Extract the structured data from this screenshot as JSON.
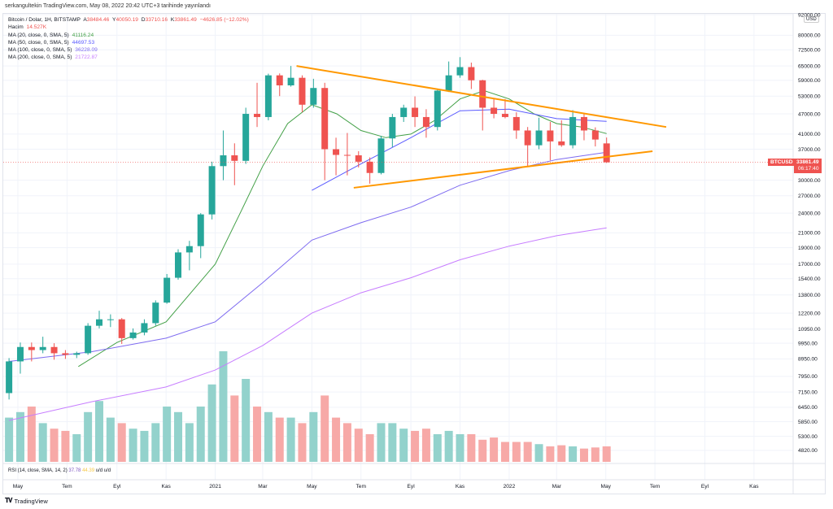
{
  "publisher_line": "serkangultekin TradingView.com, May 08, 2022 20:42 UTC+3 tarihinde yayınlandı",
  "legend": {
    "symbol": "Bitcoin / Dolar, 1H, BITSTAMP",
    "ohlc": {
      "a_label": "A",
      "a": "38484.46",
      "y_label": "Y",
      "y": "40050.19",
      "d_label": "D",
      "d": "33710.16",
      "k_label": "K",
      "k": "33861.49",
      "change": "−4626.85 (−12.02%)"
    },
    "volume_label": "Hacim",
    "volume_value": "14.527K",
    "ma": [
      {
        "label": "MA (20, close, 0, SMA, 5)",
        "value": "41116.24",
        "color": "#43a047"
      },
      {
        "label": "MA (50, close, 0, SMA, 5)",
        "value": "44697.53",
        "color": "#5a5aff"
      },
      {
        "label": "MA (100, close, 0, SMA, 5)",
        "value": "36228.09",
        "color": "#7e6bf0"
      },
      {
        "label": "MA (200, close, 0, SMA, 5)",
        "value": "21722.87",
        "color": "#c77dff"
      }
    ]
  },
  "rsi": {
    "label": "RSI (14, close, SMA, 14, 2)",
    "value1": "37.78",
    "value2": "44.39",
    "extra": "u/d u/d",
    "color1": "#7e57c2",
    "color2": "#f7c948"
  },
  "price_axis": {
    "currency": "USD",
    "ticks": [
      "92000.00",
      "80000.00",
      "72500.00",
      "65000.00",
      "59000.00",
      "53000.00",
      "47000.00",
      "41000.00",
      "37000.00",
      "30000.00",
      "27000.00",
      "24000.00",
      "21000.00",
      "19000.00",
      "17000.00",
      "15400.00",
      "13800.00",
      "12200.00",
      "10950.00",
      "9950.00",
      "8950.00",
      "7950.00",
      "7150.00",
      "6450.00",
      "5850.00",
      "5300.00",
      "4820.00"
    ]
  },
  "symbol_tag": "BTCUSD",
  "last_price": "33861.49",
  "countdown": "06:17:40",
  "footer_brand": "TradingView",
  "colors": {
    "up": "#26a69a",
    "down": "#ef5350",
    "trendline": "#ff9800",
    "grid": "#f0f3fa"
  },
  "chart_data": {
    "type": "candlestick",
    "y_scale": "log",
    "ylim": [
      4500,
      92000
    ],
    "grid": true,
    "x_ticks": [
      {
        "label": "May",
        "date": "2020-05-01"
      },
      {
        "label": "Tem",
        "date": "2020-07-01"
      },
      {
        "label": "Eyl",
        "date": "2020-09-01"
      },
      {
        "label": "Kas",
        "date": "2020-11-01"
      },
      {
        "label": "2021",
        "date": "2021-01-01"
      },
      {
        "label": "Mar",
        "date": "2021-03-01"
      },
      {
        "label": "May",
        "date": "2021-05-01"
      },
      {
        "label": "Tem",
        "date": "2021-07-01"
      },
      {
        "label": "Eyl",
        "date": "2021-09-01"
      },
      {
        "label": "Kas",
        "date": "2021-11-01"
      },
      {
        "label": "2022",
        "date": "2022-01-01"
      },
      {
        "label": "Mar",
        "date": "2022-03-01"
      },
      {
        "label": "May",
        "date": "2022-05-01"
      },
      {
        "label": "Tem",
        "date": "2022-07-01"
      },
      {
        "label": "Eyl",
        "date": "2022-09-01"
      },
      {
        "label": "Kas",
        "date": "2022-11-01"
      }
    ],
    "dates": [
      "2020-04-20",
      "2020-05-04",
      "2020-05-18",
      "2020-06-01",
      "2020-06-15",
      "2020-06-29",
      "2020-07-13",
      "2020-07-27",
      "2020-08-10",
      "2020-08-24",
      "2020-09-07",
      "2020-09-21",
      "2020-10-05",
      "2020-10-19",
      "2020-11-02",
      "2020-11-16",
      "2020-11-30",
      "2020-12-14",
      "2020-12-28",
      "2021-01-11",
      "2021-01-25",
      "2021-02-08",
      "2021-02-22",
      "2021-03-08",
      "2021-03-22",
      "2021-04-05",
      "2021-04-19",
      "2021-05-03",
      "2021-05-17",
      "2021-05-31",
      "2021-06-14",
      "2021-06-28",
      "2021-07-12",
      "2021-07-26",
      "2021-08-09",
      "2021-08-23",
      "2021-09-06",
      "2021-09-20",
      "2021-10-04",
      "2021-10-18",
      "2021-11-01",
      "2021-11-15",
      "2021-11-29",
      "2021-12-13",
      "2021-12-27",
      "2022-01-10",
      "2022-01-24",
      "2022-02-07",
      "2022-02-21",
      "2022-03-07",
      "2022-03-21",
      "2022-04-04",
      "2022-04-18",
      "2022-05-02"
    ],
    "ohlc": [
      [
        7100,
        9000,
        6800,
        8800
      ],
      [
        8800,
        10000,
        8100,
        9700
      ],
      [
        9700,
        10000,
        8800,
        9500
      ],
      [
        9500,
        10400,
        9300,
        9700
      ],
      [
        9700,
        9950,
        8900,
        9300
      ],
      [
        9300,
        9500,
        8950,
        9200
      ],
      [
        9200,
        9400,
        9000,
        9300
      ],
      [
        9300,
        11400,
        9200,
        11200
      ],
      [
        11200,
        12400,
        11000,
        11700
      ],
      [
        11700,
        12100,
        11100,
        11700
      ],
      [
        11700,
        11800,
        9900,
        10300
      ],
      [
        10300,
        11000,
        10200,
        10700
      ],
      [
        10700,
        11700,
        10500,
        11400
      ],
      [
        11400,
        13300,
        11200,
        13100
      ],
      [
        13100,
        15900,
        13000,
        15500
      ],
      [
        15500,
        18800,
        15300,
        18400
      ],
      [
        18400,
        19900,
        16300,
        19200
      ],
      [
        19200,
        24000,
        17700,
        23800
      ],
      [
        23800,
        34000,
        23000,
        33000
      ],
      [
        33000,
        42000,
        30000,
        35500
      ],
      [
        35500,
        38500,
        29000,
        34200
      ],
      [
        34200,
        49000,
        33500,
        47000
      ],
      [
        47000,
        58000,
        43000,
        46000
      ],
      [
        46000,
        61700,
        45000,
        61000
      ],
      [
        61000,
        61800,
        53000,
        57000
      ],
      [
        57000,
        65000,
        56500,
        60000
      ],
      [
        60000,
        61000,
        47500,
        50000
      ],
      [
        50000,
        59600,
        49000,
        56000
      ],
      [
        56000,
        58000,
        30000,
        37000
      ],
      [
        37000,
        40000,
        31000,
        35600
      ],
      [
        35600,
        41300,
        31000,
        35500
      ],
      [
        35500,
        36500,
        32700,
        34000
      ],
      [
        34000,
        35000,
        29300,
        31500
      ],
      [
        31500,
        40500,
        31200,
        39800
      ],
      [
        39800,
        47000,
        37500,
        46000
      ],
      [
        46000,
        50000,
        44500,
        49000
      ],
      [
        49000,
        52900,
        43000,
        46000
      ],
      [
        46000,
        48500,
        40000,
        43000
      ],
      [
        43000,
        55700,
        42000,
        55000
      ],
      [
        55000,
        67000,
        54500,
        61000
      ],
      [
        61000,
        69000,
        60000,
        64500
      ],
      [
        64500,
        66500,
        55600,
        59000
      ],
      [
        59000,
        59200,
        42000,
        49000
      ],
      [
        49000,
        51900,
        45600,
        47000
      ],
      [
        47000,
        52000,
        45600,
        46000
      ],
      [
        46000,
        47500,
        39700,
        42000
      ],
      [
        42000,
        43000,
        33000,
        38000
      ],
      [
        38000,
        45800,
        37000,
        42000
      ],
      [
        42000,
        44500,
        34300,
        39000
      ],
      [
        39000,
        45000,
        37600,
        38000
      ],
      [
        38000,
        48200,
        37200,
        46000
      ],
      [
        46000,
        47300,
        39300,
        42000
      ],
      [
        42000,
        42900,
        37700,
        39500
      ],
      [
        38484.46,
        40050.19,
        33710.16,
        33861.49
      ]
    ],
    "volume_relative": [
      40,
      45,
      50,
      35,
      30,
      28,
      25,
      45,
      55,
      40,
      35,
      30,
      28,
      35,
      50,
      45,
      35,
      50,
      70,
      100,
      60,
      75,
      50,
      45,
      40,
      40,
      35,
      45,
      60,
      40,
      35,
      30,
      25,
      35,
      35,
      30,
      28,
      30,
      25,
      28,
      25,
      25,
      20,
      22,
      18,
      18,
      18,
      16,
      14,
      15,
      14,
      12,
      13,
      14
    ],
    "moving_averages": [
      {
        "name": "MA 20",
        "color": "#43a047",
        "points": [
          [
            "2020-07-15",
            8500
          ],
          [
            "2020-09-01",
            10000
          ],
          [
            "2020-11-01",
            11500
          ],
          [
            "2021-01-01",
            17000
          ],
          [
            "2021-02-01",
            24000
          ],
          [
            "2021-03-01",
            33000
          ],
          [
            "2021-04-01",
            44000
          ],
          [
            "2021-05-01",
            50000
          ],
          [
            "2021-06-01",
            47000
          ],
          [
            "2021-07-01",
            42000
          ],
          [
            "2021-08-01",
            40000
          ],
          [
            "2021-09-01",
            41000
          ],
          [
            "2021-10-01",
            45000
          ],
          [
            "2021-11-01",
            52000
          ],
          [
            "2021-12-01",
            55000
          ],
          [
            "2022-01-01",
            52000
          ],
          [
            "2022-02-01",
            47000
          ],
          [
            "2022-03-01",
            44000
          ],
          [
            "2022-04-01",
            43000
          ],
          [
            "2022-05-02",
            41116.24
          ]
        ]
      },
      {
        "name": "MA 50",
        "color": "#5a5aff",
        "points": [
          [
            "2021-05-01",
            28000
          ],
          [
            "2021-07-01",
            33500
          ],
          [
            "2021-09-01",
            40000
          ],
          [
            "2021-11-01",
            48000
          ],
          [
            "2022-01-01",
            48500
          ],
          [
            "2022-03-01",
            45500
          ],
          [
            "2022-05-02",
            44697.53
          ]
        ]
      },
      {
        "name": "MA 100",
        "color": "#7e6bf0",
        "points": [
          [
            "2020-04-20",
            8800
          ],
          [
            "2020-08-01",
            9400
          ],
          [
            "2020-11-01",
            10300
          ],
          [
            "2021-01-01",
            11500
          ],
          [
            "2021-03-01",
            15000
          ],
          [
            "2021-05-01",
            20000
          ],
          [
            "2021-07-01",
            22500
          ],
          [
            "2021-09-01",
            25000
          ],
          [
            "2021-11-01",
            29000
          ],
          [
            "2022-01-01",
            32000
          ],
          [
            "2022-03-01",
            34500
          ],
          [
            "2022-05-02",
            36228.09
          ]
        ]
      },
      {
        "name": "MA 200",
        "color": "#c77dff",
        "points": [
          [
            "2020-04-20",
            5900
          ],
          [
            "2020-08-01",
            6700
          ],
          [
            "2020-11-01",
            7400
          ],
          [
            "2021-01-01",
            8300
          ],
          [
            "2021-03-01",
            9800
          ],
          [
            "2021-05-01",
            12200
          ],
          [
            "2021-07-01",
            14000
          ],
          [
            "2021-09-01",
            15500
          ],
          [
            "2021-11-01",
            17500
          ],
          [
            "2022-01-01",
            19200
          ],
          [
            "2022-03-01",
            20600
          ],
          [
            "2022-05-02",
            21722.87
          ]
        ]
      }
    ],
    "trendlines": [
      {
        "from": [
          "2021-04-12",
          65000
        ],
        "to": [
          "2022-07-15",
          43000
        ]
      },
      {
        "from": [
          "2021-06-22",
          28500
        ],
        "to": [
          "2022-06-28",
          36500
        ]
      }
    ]
  }
}
